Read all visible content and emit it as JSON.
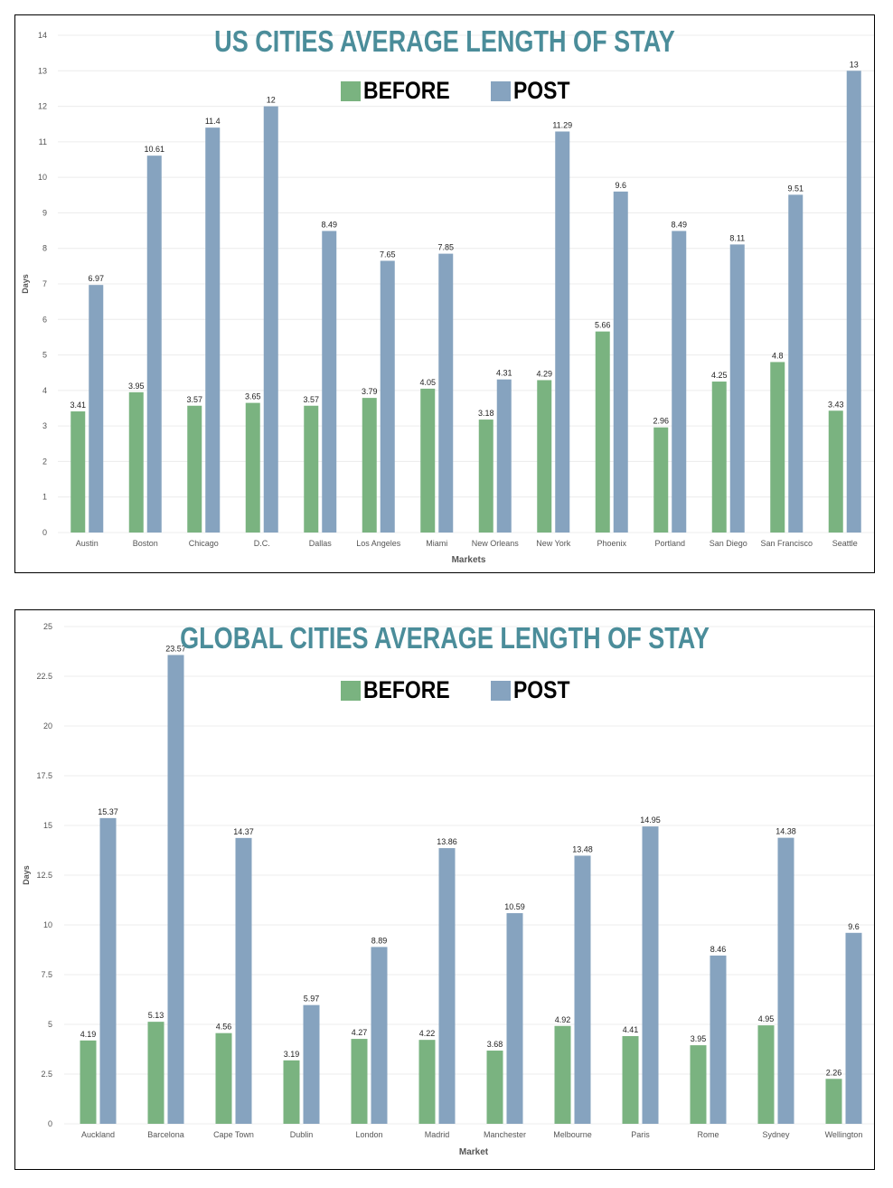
{
  "colors": {
    "before": "#7ab380",
    "post": "#86a3bf",
    "title": "#4b8d9a",
    "grid": "#ececec",
    "axis_text": "#555555"
  },
  "chart_data": [
    {
      "type": "bar",
      "title": "US CITIES AVERAGE LENGTH OF STAY",
      "xlabel": "Markets",
      "ylabel": "Days",
      "ylim": [
        0,
        14
      ],
      "yticks": [
        "0",
        "1",
        "2",
        "3",
        "4",
        "5",
        "6",
        "7",
        "8",
        "9",
        "10",
        "11",
        "12",
        "13",
        "14"
      ],
      "legend_position": "top-center",
      "categories": [
        "Austin",
        "Boston",
        "Chicago",
        "D.C.",
        "Dallas",
        "Los Angeles",
        "Miami",
        "New Orleans",
        "New York",
        "Phoenix",
        "Portland",
        "San Diego",
        "San Francisco",
        "Seattle"
      ],
      "series": [
        {
          "name": "BEFORE",
          "values": [
            3.41,
            3.95,
            3.57,
            3.65,
            3.57,
            3.79,
            4.05,
            3.18,
            4.29,
            5.66,
            2.96,
            4.25,
            4.8,
            3.43
          ]
        },
        {
          "name": "POST",
          "values": [
            6.97,
            10.61,
            11.4,
            12,
            8.49,
            7.65,
            7.85,
            4.31,
            11.29,
            9.6,
            8.49,
            8.11,
            9.51,
            13
          ]
        }
      ]
    },
    {
      "type": "bar",
      "title": "GLOBAL CITIES AVERAGE LENGTH OF STAY",
      "xlabel": "Market",
      "ylabel": "Days",
      "ylim": [
        0,
        25
      ],
      "yticks": [
        "0",
        "2.5",
        "5",
        "7.5",
        "10",
        "12.5",
        "15",
        "17.5",
        "20",
        "22.5",
        "25"
      ],
      "legend_position": "top-center",
      "categories": [
        "Auckland",
        "Barcelona",
        "Cape Town",
        "Dublin",
        "London",
        "Madrid",
        "Manchester",
        "Melbourne",
        "Paris",
        "Rome",
        "Sydney",
        "Wellington"
      ],
      "series": [
        {
          "name": "BEFORE",
          "values": [
            4.19,
            5.13,
            4.56,
            3.19,
            4.27,
            4.22,
            3.68,
            4.92,
            4.41,
            3.95,
            4.95,
            2.26
          ]
        },
        {
          "name": "POST",
          "values": [
            15.37,
            23.57,
            14.37,
            5.97,
            8.89,
            13.86,
            10.59,
            13.48,
            14.95,
            8.46,
            14.38,
            9.6
          ]
        }
      ]
    }
  ]
}
